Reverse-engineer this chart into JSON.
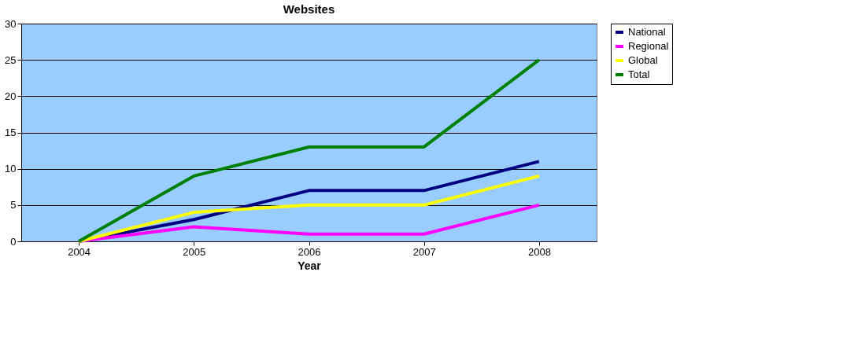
{
  "chart_data": {
    "type": "line",
    "title": "Websites",
    "xlabel": "Year",
    "categories": [
      "2004",
      "2005",
      "2006",
      "2007",
      "2008"
    ],
    "series": [
      {
        "name": "National",
        "color": "#000080",
        "values": [
          0,
          3,
          7,
          7,
          11
        ]
      },
      {
        "name": "Regional",
        "color": "#ff00ff",
        "values": [
          0,
          2,
          1,
          1,
          5
        ]
      },
      {
        "name": "Global",
        "color": "#ffff00",
        "values": [
          0,
          4,
          5,
          5,
          9
        ]
      },
      {
        "name": "Total",
        "color": "#008000",
        "values": [
          0,
          9,
          13,
          13,
          25
        ]
      }
    ],
    "ylim": [
      0,
      30
    ],
    "yticks": [
      0,
      5,
      10,
      15,
      20,
      25,
      30
    ],
    "grid": "y",
    "legend": "right",
    "marker": "none",
    "line_style": "solid"
  }
}
